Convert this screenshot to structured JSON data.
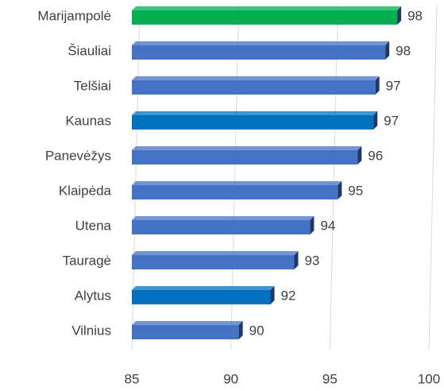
{
  "chart_data": {
    "type": "hbar",
    "categories": [
      "Marijampolė",
      "Šiauliai",
      "Telšiai",
      "Kaunas",
      "Panevėžys",
      "Klaipėda",
      "Utena",
      "Tauragė",
      "Alytus",
      "Vilnius"
    ],
    "values": [
      98.4,
      97.8,
      97.3,
      97.2,
      96.4,
      95.4,
      94.0,
      93.2,
      92.0,
      90.4
    ],
    "value_labels": [
      "98",
      "98",
      "97",
      "97",
      "96",
      "95",
      "94",
      "93",
      "92",
      "90"
    ],
    "colors": [
      "#00b050",
      "#4472c4",
      "#4472c4",
      "#0070c0",
      "#4472c4",
      "#4472c4",
      "#4472c4",
      "#4472c4",
      "#0070c0",
      "#4472c4"
    ],
    "xlim": [
      85,
      100
    ],
    "xticks": [
      85,
      90,
      95,
      100
    ],
    "grid": true
  }
}
